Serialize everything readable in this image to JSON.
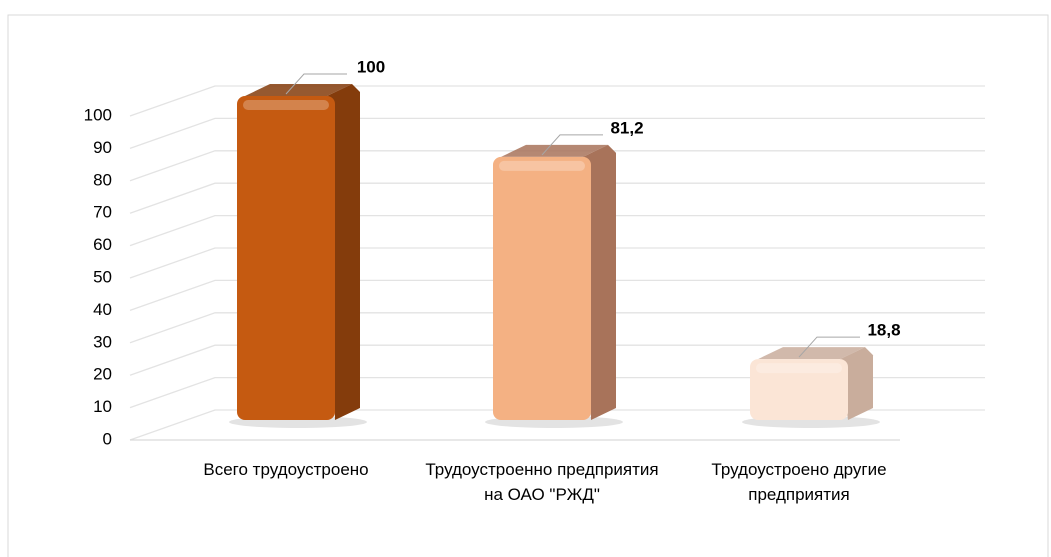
{
  "chart_data": {
    "type": "bar3d",
    "categories": [
      "Всего трудоустроено",
      "Трудоустроенно предприятия на ОАО \"РЖД\"",
      "Трудоустроено другие предприятия"
    ],
    "values": [
      100,
      81.2,
      18.8
    ],
    "value_labels": [
      "100",
      "81,2",
      "18,8"
    ],
    "colors": [
      "#c55a11",
      "#f4b183",
      "#fbe5d6"
    ],
    "side_colors": [
      "#843c0c",
      "#a8735a",
      "#c9ad9c"
    ],
    "ylim": [
      0,
      100
    ],
    "yticks": [
      0,
      10,
      20,
      30,
      40,
      50,
      60,
      70,
      80,
      90,
      100
    ],
    "grid": true
  }
}
